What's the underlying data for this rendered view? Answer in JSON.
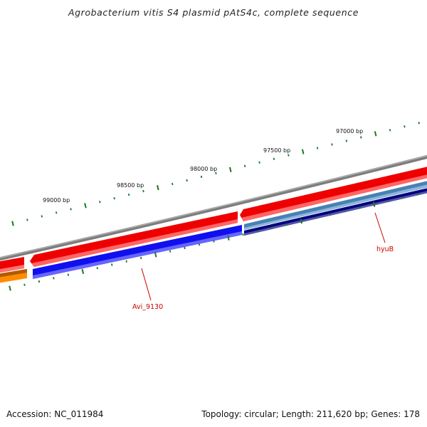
{
  "title": "Agrobacterium vitis S4 plasmid pAtS4c, complete sequence",
  "ruler_labels": [
    "99000 bp",
    "98500 bp",
    "98000 bp",
    "97500 bp",
    "97000 bp"
  ],
  "gene_labels": [
    "Avi_9130",
    "hyuB"
  ],
  "footer": {
    "accession": "Accession: NC_011984",
    "summary": "Topology: circular; Length: 211,620 bp; Genes: 178"
  },
  "colors": {
    "backbone": "#888888",
    "gene_red": "#ee0000",
    "gene_blue": "#1a1aee",
    "gene_steelblue": "#4682b4",
    "gene_navy": "#000080",
    "gene_orange": "#ff8c00",
    "ticks": "#1a7a1a",
    "label_red": "#cc0000"
  }
}
